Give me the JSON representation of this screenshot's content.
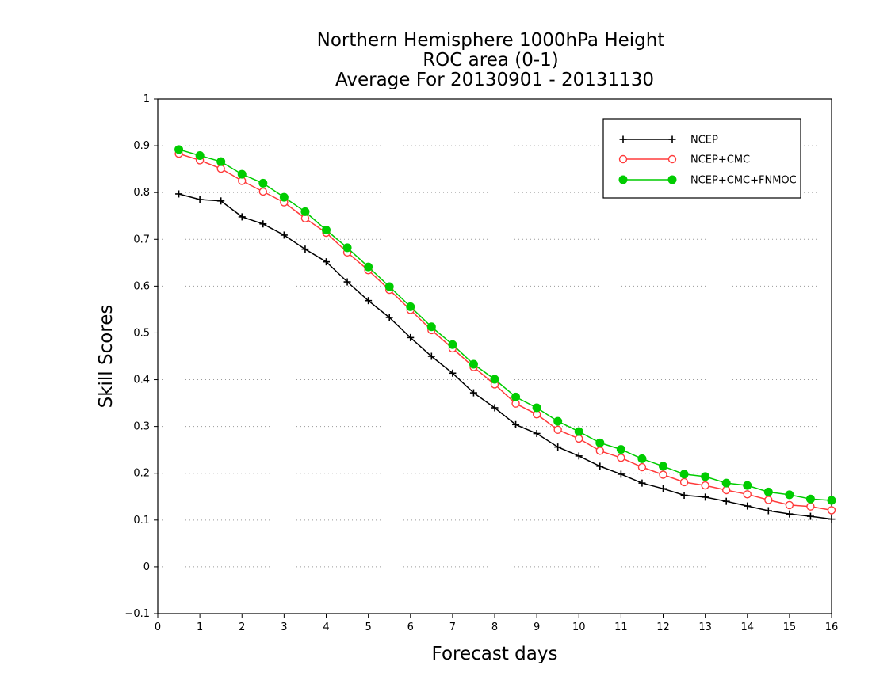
{
  "chart_data": {
    "type": "line",
    "title": [
      "Northern Hemisphere 1000hPa Height",
      "ROC area (0-1)",
      "Average For 20130901 - 20131130"
    ],
    "xlabel": "Forecast days",
    "ylabel": "Skill Scores",
    "xlim": [
      0,
      16
    ],
    "ylim": [
      -0.1,
      1
    ],
    "xticks": [
      "0",
      "1",
      "2",
      "3",
      "4",
      "5",
      "6",
      "7",
      "8",
      "9",
      "10",
      "11",
      "12",
      "13",
      "14",
      "15",
      "16"
    ],
    "yticks": [
      "−0.1",
      "0",
      "0.1",
      "0.2",
      "0.3",
      "0.4",
      "0.5",
      "0.6",
      "0.7",
      "0.8",
      "0.9",
      "1"
    ],
    "grid": "horizontal dotted",
    "legend_position": "top-right",
    "x": [
      0.5,
      1,
      1.5,
      2,
      2.5,
      3,
      3.5,
      4,
      4.5,
      5,
      5.5,
      6,
      6.5,
      7,
      7.5,
      8,
      8.5,
      9,
      9.5,
      10,
      10.5,
      11,
      11.5,
      12,
      12.5,
      13,
      13.5,
      14,
      14.5,
      15,
      15.5,
      16
    ],
    "series": [
      {
        "name": "NCEP",
        "color": "#000000",
        "marker": "plus",
        "values": [
          0.797,
          0.785,
          0.782,
          0.748,
          0.733,
          0.709,
          0.679,
          0.652,
          0.609,
          0.569,
          0.533,
          0.49,
          0.45,
          0.414,
          0.372,
          0.34,
          0.304,
          0.285,
          0.256,
          0.237,
          0.215,
          0.198,
          0.179,
          0.167,
          0.153,
          0.149,
          0.14,
          0.13,
          0.12,
          0.113,
          0.108,
          0.102
        ]
      },
      {
        "name": "NCEP+CMC",
        "color": "#ff3b3b",
        "marker": "open-circle",
        "values": [
          0.883,
          0.869,
          0.851,
          0.825,
          0.802,
          0.779,
          0.745,
          0.714,
          0.672,
          0.634,
          0.592,
          0.549,
          0.506,
          0.467,
          0.427,
          0.39,
          0.349,
          0.326,
          0.293,
          0.274,
          0.248,
          0.233,
          0.213,
          0.197,
          0.181,
          0.174,
          0.164,
          0.155,
          0.143,
          0.132,
          0.129,
          0.121
        ]
      },
      {
        "name": "NCEP+CMC+FNMOC",
        "color": "#00cc00",
        "marker": "filled-circle",
        "values": [
          0.892,
          0.879,
          0.866,
          0.839,
          0.82,
          0.79,
          0.759,
          0.72,
          0.682,
          0.641,
          0.599,
          0.556,
          0.513,
          0.475,
          0.433,
          0.401,
          0.363,
          0.34,
          0.311,
          0.289,
          0.265,
          0.251,
          0.231,
          0.215,
          0.198,
          0.193,
          0.179,
          0.174,
          0.16,
          0.154,
          0.145,
          0.142
        ]
      }
    ]
  }
}
